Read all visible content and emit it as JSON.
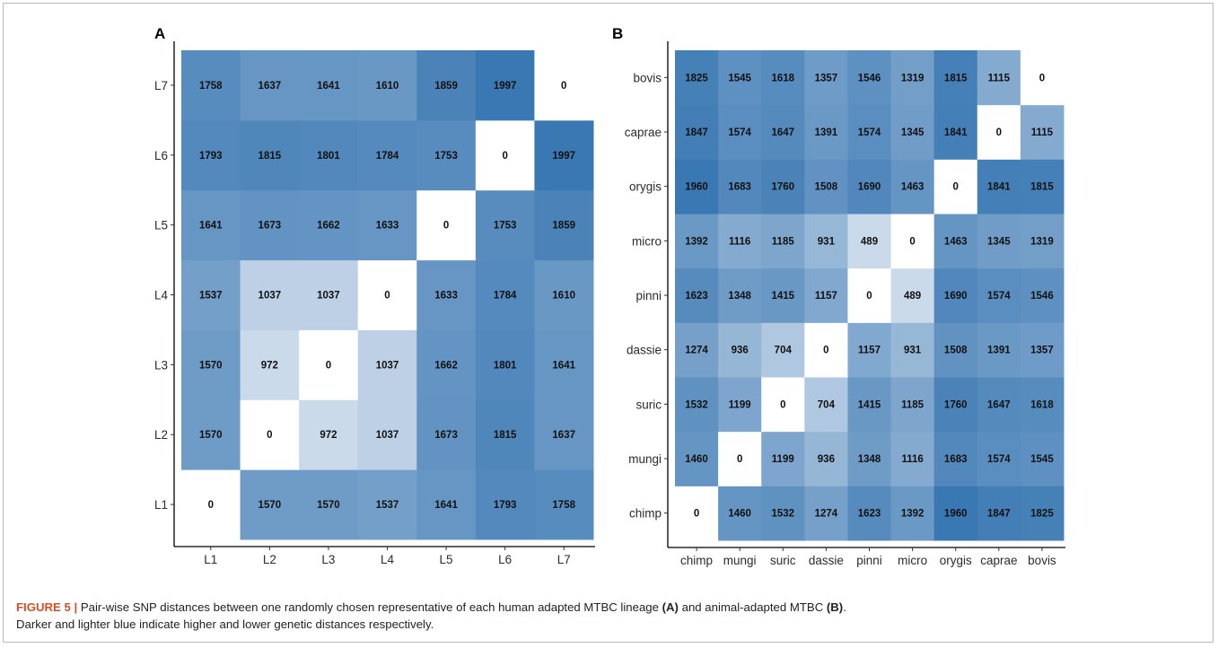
{
  "chart_data": [
    {
      "type": "heatmap",
      "panel_label": "A",
      "x_categories": [
        "L1",
        "L2",
        "L3",
        "L4",
        "L5",
        "L6",
        "L7"
      ],
      "y_categories": [
        "L1",
        "L2",
        "L3",
        "L4",
        "L5",
        "L6",
        "L7"
      ],
      "values": [
        [
          0,
          1570,
          1570,
          1537,
          1641,
          1793,
          1758
        ],
        [
          1570,
          0,
          972,
          1037,
          1673,
          1815,
          1637
        ],
        [
          1570,
          972,
          0,
          1037,
          1662,
          1801,
          1641
        ],
        [
          1537,
          1037,
          1037,
          0,
          1633,
          1784,
          1610
        ],
        [
          1641,
          1673,
          1662,
          1633,
          0,
          1753,
          1859
        ],
        [
          1793,
          1815,
          1801,
          1784,
          1753,
          0,
          1997
        ],
        [
          1758,
          1637,
          1641,
          1610,
          1859,
          1997,
          0
        ]
      ],
      "color_low": "#dfe7f2",
      "color_high": "#3a78b3",
      "zero_color": "#ffffff",
      "grid": false,
      "legend": "none"
    },
    {
      "type": "heatmap",
      "panel_label": "B",
      "x_categories": [
        "chimp",
        "mungi",
        "suric",
        "dassie",
        "pinni",
        "micro",
        "orygis",
        "caprae",
        "bovis"
      ],
      "y_categories": [
        "chimp",
        "mungi",
        "suric",
        "dassie",
        "pinni",
        "micro",
        "orygis",
        "caprae",
        "bovis"
      ],
      "values": [
        [
          0,
          1460,
          1532,
          1274,
          1623,
          1392,
          1960,
          1847,
          1825
        ],
        [
          1460,
          0,
          1199,
          936,
          1348,
          1116,
          1683,
          1574,
          1545
        ],
        [
          1532,
          1199,
          0,
          704,
          1415,
          1185,
          1760,
          1647,
          1618
        ],
        [
          1274,
          936,
          704,
          0,
          1157,
          931,
          1508,
          1391,
          1357
        ],
        [
          1623,
          1348,
          1415,
          1157,
          0,
          489,
          1690,
          1574,
          1546
        ],
        [
          1392,
          1116,
          1185,
          931,
          489,
          0,
          1463,
          1345,
          1319
        ],
        [
          1960,
          1683,
          1760,
          1508,
          1690,
          1463,
          0,
          1841,
          1815
        ],
        [
          1847,
          1574,
          1647,
          1391,
          1574,
          1345,
          1841,
          0,
          1115
        ],
        [
          1825,
          1545,
          1618,
          1357,
          1546,
          1319,
          1815,
          1115,
          0
        ]
      ],
      "color_low": "#dfe7f2",
      "color_high": "#3a78b3",
      "zero_color": "#ffffff",
      "grid": false,
      "legend": "none"
    }
  ],
  "caption": {
    "figure_id": "FIGURE 5 |",
    "text_1": " Pair-wise SNP distances between one randomly chosen representative of each human adapted MTBC lineage ",
    "ref_a": "(A)",
    "text_2": " and animal-adapted MTBC ",
    "ref_b": "(B)",
    "text_3": ".",
    "line_2": "Darker and lighter blue indicate higher and lower genetic distances respectively."
  }
}
